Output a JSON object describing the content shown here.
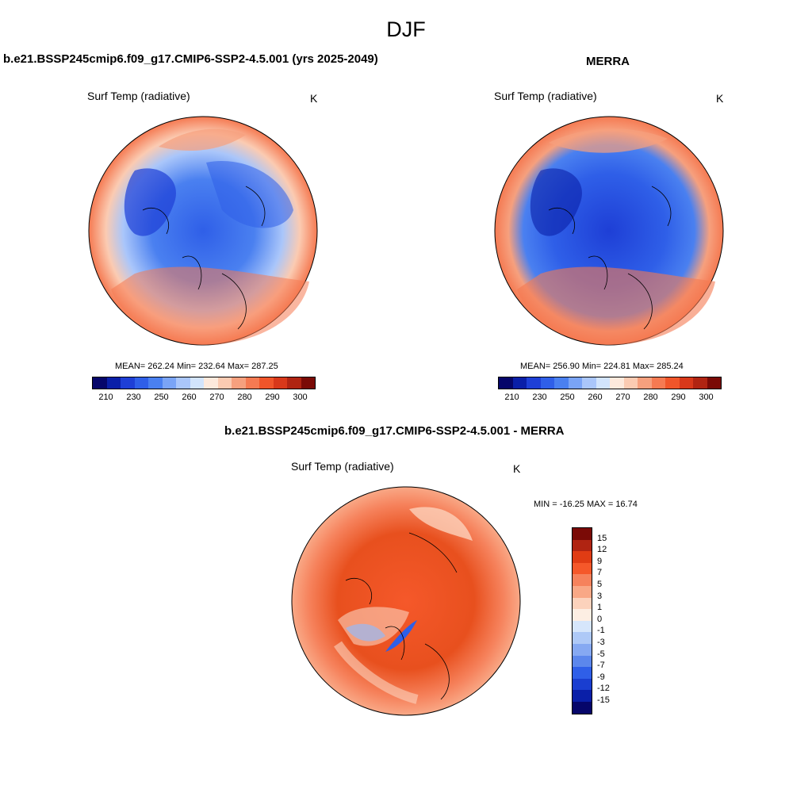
{
  "season": "DJF",
  "panels": {
    "model": {
      "title": "b.e21.BSSP245cmip6.f09_g17.CMIP6-SSP2-4.5.001 (yrs 2025-2049)",
      "variable": "Surf Temp (radiative)",
      "units": "K",
      "stats": "MEAN= 262.24  Min= 232.64  Max= 287.25",
      "mean": 262.24,
      "min": 232.64,
      "max": 287.25
    },
    "obs": {
      "title": "MERRA",
      "variable": "Surf Temp (radiative)",
      "units": "K",
      "stats": "MEAN= 256.90  Min= 224.81  Max= 285.24",
      "mean": 256.9,
      "min": 224.81,
      "max": 285.24
    },
    "diff": {
      "title": "b.e21.BSSP245cmip6.f09_g17.CMIP6-SSP2-4.5.001 - MERRA",
      "variable": "Surf Temp (radiative)",
      "units": "K",
      "stats": "MIN = -16.25 MAX =  16.74",
      "min": -16.25,
      "max": 16.74
    }
  },
  "abs_colorbar": {
    "colors": [
      "#06066a",
      "#0a1fa8",
      "#1e3fd6",
      "#2f5fe8",
      "#4a80f0",
      "#7aa4f6",
      "#aac6fa",
      "#d2e4fc",
      "#fde9dc",
      "#fbcbb2",
      "#f6a07e",
      "#f57a52",
      "#f0552a",
      "#d8381a",
      "#b02412",
      "#7a0a06"
    ],
    "labels": [
      "210",
      "230",
      "250",
      "260",
      "270",
      "280",
      "290",
      "300"
    ]
  },
  "diff_colorbar": {
    "colors": [
      "#7a0a06",
      "#b02412",
      "#e03c14",
      "#f5582a",
      "#f6825c",
      "#f9a886",
      "#fcd2bc",
      "#fdeee3",
      "#d6e6fb",
      "#aec9f7",
      "#86a9f2",
      "#5c87ec",
      "#2f5fe8",
      "#1a3ed0",
      "#0a1fa8",
      "#06066a"
    ],
    "labels": [
      "15",
      "12",
      "9",
      "7",
      "5",
      "3",
      "1",
      "0",
      "-1",
      "-3",
      "-5",
      "-7",
      "-9",
      "-12",
      "-15"
    ]
  }
}
